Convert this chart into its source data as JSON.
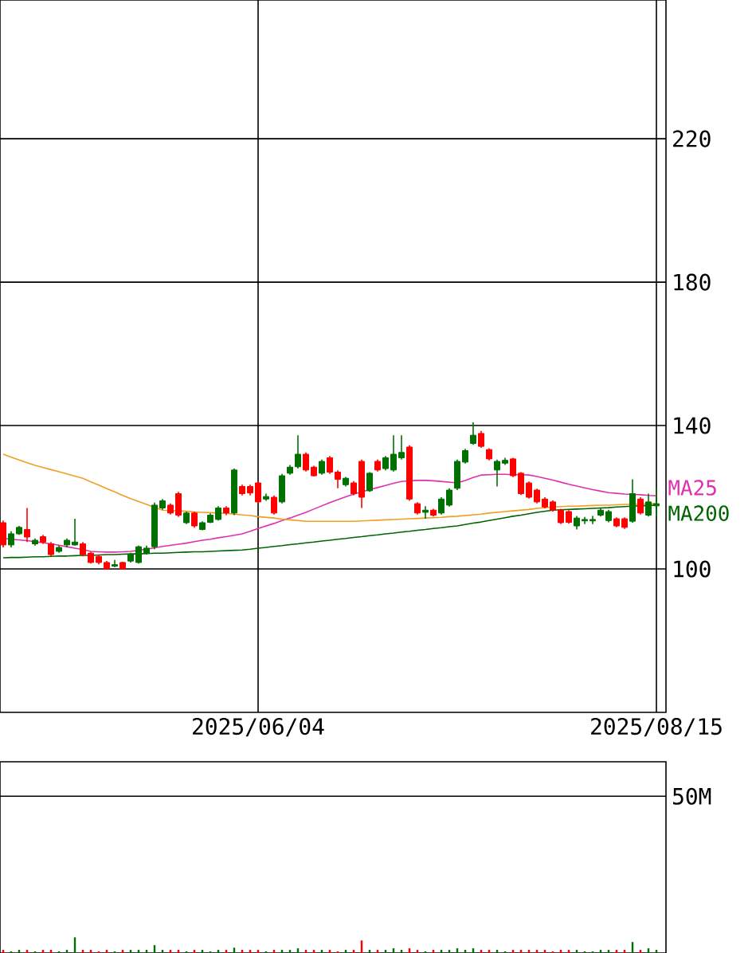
{
  "chart_data": [
    {
      "type": "candlestick",
      "categories": [
        null,
        null,
        null,
        null,
        null,
        null,
        null,
        null,
        null,
        null,
        null,
        null,
        null,
        null,
        null,
        null,
        null,
        null,
        null,
        null,
        null,
        null,
        null,
        null,
        null,
        null,
        null,
        null,
        null,
        null,
        null,
        null,
        "2025/06/04",
        null,
        null,
        null,
        null,
        null,
        null,
        null,
        null,
        null,
        null,
        null,
        null,
        null,
        null,
        null,
        null,
        null,
        null,
        null,
        null,
        null,
        null,
        null,
        null,
        null,
        null,
        null,
        null,
        null,
        null,
        null,
        null,
        null,
        null,
        null,
        null,
        null,
        null,
        null,
        null,
        null,
        null,
        null,
        null,
        null,
        null,
        null,
        null,
        null,
        "2025/08/15"
      ],
      "ohlc": [
        [
          112.9,
          113.5,
          106,
          106.7
        ],
        [
          106.7,
          110.5,
          106,
          109.8
        ],
        [
          109.8,
          112,
          109.5,
          111.6
        ],
        [
          111,
          117,
          107.5,
          108.9
        ],
        [
          107,
          108.5,
          106.5,
          108
        ],
        [
          109,
          109.5,
          107,
          107.5
        ],
        [
          107,
          107.5,
          103.5,
          104
        ],
        [
          104.9,
          106.5,
          104.5,
          106
        ],
        [
          106.7,
          108.5,
          106,
          108
        ],
        [
          106.7,
          114,
          106.5,
          107.5
        ],
        [
          107,
          107.5,
          103.5,
          104
        ],
        [
          104.4,
          104.8,
          101.5,
          101.8
        ],
        [
          103.5,
          104,
          101.3,
          101.8
        ],
        [
          101.8,
          102.2,
          99.8,
          100
        ],
        [
          100.8,
          102.5,
          100.5,
          101.2
        ],
        [
          101.8,
          102,
          99.8,
          100
        ],
        [
          102.2,
          104.5,
          101.8,
          104
        ],
        [
          101.8,
          106.5,
          101.5,
          106.2
        ],
        [
          104.4,
          106.5,
          104,
          105.8
        ],
        [
          106.2,
          118.5,
          105.5,
          117.8
        ],
        [
          117,
          119.5,
          116.5,
          119
        ],
        [
          117.8,
          118.3,
          115.2,
          115.6
        ],
        [
          121,
          121.5,
          114.5,
          115
        ],
        [
          112.9,
          116,
          112.5,
          115.6
        ],
        [
          115.6,
          116,
          111.5,
          112
        ],
        [
          111,
          113.3,
          110.8,
          112.9
        ],
        [
          113,
          115.5,
          112.8,
          115
        ],
        [
          113.8,
          117.5,
          113.5,
          117
        ],
        [
          117,
          117.5,
          115,
          115.6
        ],
        [
          115.6,
          128,
          115,
          127.6
        ],
        [
          123,
          123.5,
          120.5,
          121
        ],
        [
          123,
          123.5,
          120.5,
          121.2
        ],
        [
          124,
          124.5,
          118.3,
          118.7
        ],
        [
          119.5,
          121,
          119,
          120.2
        ],
        [
          120,
          120.5,
          115.2,
          115.6
        ],
        [
          118.7,
          126.5,
          118.3,
          126
        ],
        [
          126.7,
          129,
          126.3,
          128.4
        ],
        [
          128.5,
          137.3,
          128,
          132
        ],
        [
          132,
          132.5,
          127.2,
          127.6
        ],
        [
          128.4,
          128.8,
          125.8,
          126
        ],
        [
          126.7,
          130.5,
          126.3,
          130
        ],
        [
          131,
          131.5,
          126.5,
          127
        ],
        [
          127,
          127.5,
          122.5,
          125
        ],
        [
          123.5,
          125.7,
          123,
          125.3
        ],
        [
          124,
          124.5,
          120.5,
          121
        ],
        [
          130,
          130.5,
          117,
          120
        ],
        [
          121.8,
          127,
          121.5,
          126.7
        ],
        [
          130,
          130.5,
          127.2,
          127.6
        ],
        [
          128,
          131.5,
          127.5,
          131
        ],
        [
          127.6,
          137.3,
          127.2,
          132
        ],
        [
          131,
          137.3,
          130.5,
          132.5
        ],
        [
          134,
          134.5,
          119,
          119.5
        ],
        [
          118.2,
          118.6,
          115.2,
          115.6
        ],
        [
          115.8,
          117.5,
          114,
          116.4
        ],
        [
          116.4,
          116.8,
          114.6,
          115
        ],
        [
          115.6,
          120,
          115.2,
          119.5
        ],
        [
          117.8,
          122.5,
          117.4,
          122
        ],
        [
          122.5,
          130.5,
          122,
          130
        ],
        [
          129.8,
          133.5,
          129.4,
          133
        ],
        [
          135,
          140.9,
          134.6,
          137.3
        ],
        [
          137.8,
          138.5,
          133.8,
          134.2
        ],
        [
          133.3,
          133.7,
          130.3,
          130.7
        ],
        [
          127.6,
          130.5,
          123,
          130
        ],
        [
          129.5,
          131,
          129,
          130.3
        ],
        [
          130.7,
          131,
          125.6,
          126
        ],
        [
          126.7,
          127,
          120.6,
          121
        ],
        [
          124,
          124.4,
          119.6,
          120
        ],
        [
          122,
          122.4,
          118.3,
          118.7
        ],
        [
          119.5,
          120,
          116.9,
          117.3
        ],
        [
          118.7,
          119.1,
          116,
          116.4
        ],
        [
          116.4,
          116.8,
          112.5,
          112.9
        ],
        [
          116,
          116.4,
          112.6,
          113
        ],
        [
          112,
          114.8,
          111,
          114.2
        ],
        [
          113.4,
          114.5,
          112.5,
          113.8
        ],
        [
          113.4,
          114.8,
          112.5,
          113.8
        ],
        [
          115,
          117,
          114.6,
          116.4
        ],
        [
          113.5,
          116.5,
          113,
          116
        ],
        [
          114,
          114.4,
          111.6,
          112
        ],
        [
          114,
          114.4,
          111.2,
          111.6
        ],
        [
          113.3,
          125,
          112.9,
          121
        ],
        [
          119.5,
          120,
          115.2,
          115.6
        ],
        [
          115,
          121,
          114.6,
          118.7
        ],
        [
          117.6,
          122.5,
          114.5,
          118.2
        ]
      ],
      "colors": [
        "#ff0000",
        "#007000",
        "#007000",
        "#ff0000",
        "#007000",
        "#ff0000",
        "#ff0000",
        "#007000",
        "#007000",
        "#007000",
        "#ff0000",
        "#ff0000",
        "#ff0000",
        "#ff0000",
        "#007000",
        "#ff0000",
        "#007000",
        "#007000",
        "#007000",
        "#007000",
        "#007000",
        "#ff0000",
        "#ff0000",
        "#007000",
        "#ff0000",
        "#007000",
        "#007000",
        "#007000",
        "#ff0000",
        "#007000",
        "#ff0000",
        "#ff0000",
        "#ff0000",
        "#007000",
        "#ff0000",
        "#007000",
        "#007000",
        "#007000",
        "#ff0000",
        "#ff0000",
        "#007000",
        "#ff0000",
        "#ff0000",
        "#007000",
        "#ff0000",
        "#ff0000",
        "#007000",
        "#ff0000",
        "#007000",
        "#007000",
        "#007000",
        "#ff0000",
        "#ff0000",
        "#007000",
        "#ff0000",
        "#007000",
        "#007000",
        "#007000",
        "#007000",
        "#007000",
        "#ff0000",
        "#ff0000",
        "#007000",
        "#007000",
        "#ff0000",
        "#ff0000",
        "#ff0000",
        "#ff0000",
        "#ff0000",
        "#ff0000",
        "#ff0000",
        "#ff0000",
        "#007000",
        "#007000",
        "#007000",
        "#007000",
        "#007000",
        "#ff0000",
        "#ff0000",
        "#007000",
        "#ff0000",
        "#007000",
        "#007000"
      ],
      "series": [
        {
          "type": "line",
          "name": "MA25",
          "color": "#e030b0",
          "values": [
            108.5,
            108.3,
            108.1,
            107.9,
            107.6,
            107.3,
            107,
            106.6,
            106.2,
            105.8,
            105.4,
            104.9,
            104.8,
            104.7,
            104.7,
            104.8,
            104.9,
            105.2,
            105.5,
            105.9,
            106.3,
            106.6,
            106.9,
            107.2,
            107.6,
            108,
            108.3,
            108.7,
            109,
            109.4,
            109.8,
            110.5,
            111.3,
            112,
            112.7,
            113.5,
            114.2,
            115,
            115.8,
            116.7,
            117.6,
            118.5,
            119.3,
            120.1,
            120.9,
            121.5,
            122.1,
            122.7,
            123.3,
            123.9,
            124.4,
            124.6,
            124.7,
            124.7,
            124.6,
            124.4,
            124.2,
            124,
            124.7,
            125.5,
            126.2,
            126.3,
            126.4,
            126.4,
            126.3,
            126.3,
            126.2,
            125.8,
            125.3,
            124.8,
            124.2,
            123.6,
            123.1,
            122.6,
            122.1,
            121.7,
            121.3,
            121.1,
            120.9,
            120.8,
            120.7,
            120.5,
            120.4
          ]
        },
        {
          "type": "line",
          "color": "#f0a020",
          "values": [
            132,
            131.2,
            130.4,
            129.6,
            128.9,
            128.3,
            127.7,
            127.1,
            126.5,
            125.9,
            125.3,
            124.3,
            123.4,
            122.4,
            121.5,
            120.5,
            119.6,
            118.8,
            118,
            117.2,
            116.4,
            116.3,
            116.2,
            116.1,
            115.9,
            115.8,
            115.7,
            115.6,
            115.5,
            115.3,
            115.1,
            114.9,
            114.6,
            114.4,
            114.2,
            113.9,
            113.7,
            113.5,
            113.3,
            113.3,
            113.3,
            113.3,
            113.3,
            113.3,
            113.3,
            113.4,
            113.5,
            113.6,
            113.7,
            113.8,
            113.9,
            114,
            114.1,
            114.2,
            114.3,
            114.4,
            114.6,
            114.7,
            114.9,
            115.1,
            115.3,
            115.6,
            115.8,
            116,
            116.2,
            116.4,
            116.6,
            116.9,
            117.1,
            117.3,
            117.4,
            117.5,
            117.5,
            117.6,
            117.7,
            117.8,
            117.8,
            117.9,
            118,
            118,
            118.1,
            118.2,
            118.2
          ]
        },
        {
          "type": "line",
          "name": "MA200",
          "color": "#006400",
          "values": [
            103.1,
            103.2,
            103.2,
            103.3,
            103.4,
            103.4,
            103.5,
            103.6,
            103.6,
            103.7,
            103.8,
            103.8,
            103.9,
            104,
            104,
            104.1,
            104.2,
            104.2,
            104.3,
            104.4,
            104.4,
            104.5,
            104.6,
            104.7,
            104.8,
            104.8,
            104.9,
            105,
            105.1,
            105.2,
            105.3,
            105.5,
            105.8,
            106,
            106.3,
            106.5,
            106.8,
            107,
            107.3,
            107.5,
            107.8,
            108,
            108.3,
            108.5,
            108.8,
            109,
            109.3,
            109.5,
            109.8,
            110,
            110.3,
            110.5,
            110.8,
            111,
            111.3,
            111.5,
            111.8,
            112,
            112.4,
            112.8,
            113.1,
            113.5,
            113.9,
            114.3,
            114.7,
            115,
            115.4,
            115.8,
            116.1,
            116.4,
            116.5,
            116.6,
            116.7,
            116.8,
            116.9,
            117,
            117.1,
            117.3,
            117.4,
            117.5,
            117.6,
            117.7,
            117.8
          ]
        }
      ],
      "ylim": [
        60,
        258.7
      ],
      "yticks": [
        100,
        140,
        180,
        220
      ],
      "grid": true
    },
    {
      "type": "bar",
      "categories": [
        null,
        null,
        null,
        null,
        null,
        null,
        null,
        null,
        null,
        null,
        null,
        null,
        null,
        null,
        null,
        null,
        null,
        null,
        null,
        null,
        null,
        null,
        null,
        null,
        null,
        null,
        null,
        null,
        null,
        null,
        null,
        null,
        null,
        null,
        null,
        null,
        null,
        null,
        null,
        null,
        null,
        null,
        null,
        null,
        null,
        null,
        null,
        null,
        null,
        null,
        null,
        null,
        null,
        null,
        null,
        null,
        null,
        null,
        null,
        null,
        null,
        null,
        null,
        null,
        null,
        null,
        null,
        null,
        null,
        null,
        null,
        null,
        null,
        null,
        null,
        null,
        null,
        null,
        null,
        null,
        null,
        null,
        null
      ],
      "values": [
        1,
        0.5,
        1,
        1,
        0.5,
        1,
        1,
        0.5,
        1,
        5,
        1,
        1,
        0.5,
        1,
        0.5,
        1,
        1,
        1,
        1,
        2.5,
        1,
        1,
        1,
        0.5,
        1,
        1,
        0.5,
        1,
        1,
        1.7,
        1,
        1,
        1,
        0.5,
        1,
        1,
        1,
        1.5,
        1,
        1,
        1,
        1,
        0.5,
        1,
        1,
        4,
        1,
        1,
        1,
        1.5,
        1,
        1.5,
        1,
        0.5,
        1,
        1,
        1,
        1.5,
        1,
        1.5,
        1,
        1,
        1,
        0.5,
        1,
        1,
        1,
        1,
        1,
        0.5,
        1,
        1,
        1,
        0.5,
        0.5,
        1,
        1,
        1,
        1,
        3.5,
        1,
        1.5,
        1
      ],
      "colors": [
        "#ff0000",
        "#007000",
        "#007000",
        "#ff0000",
        "#007000",
        "#ff0000",
        "#ff0000",
        "#007000",
        "#007000",
        "#007000",
        "#ff0000",
        "#ff0000",
        "#ff0000",
        "#ff0000",
        "#007000",
        "#ff0000",
        "#007000",
        "#007000",
        "#007000",
        "#007000",
        "#007000",
        "#ff0000",
        "#ff0000",
        "#007000",
        "#ff0000",
        "#007000",
        "#007000",
        "#007000",
        "#ff0000",
        "#007000",
        "#ff0000",
        "#ff0000",
        "#ff0000",
        "#007000",
        "#ff0000",
        "#007000",
        "#007000",
        "#007000",
        "#ff0000",
        "#ff0000",
        "#007000",
        "#ff0000",
        "#ff0000",
        "#007000",
        "#ff0000",
        "#ff0000",
        "#007000",
        "#ff0000",
        "#007000",
        "#007000",
        "#007000",
        "#ff0000",
        "#ff0000",
        "#007000",
        "#ff0000",
        "#007000",
        "#007000",
        "#007000",
        "#007000",
        "#007000",
        "#ff0000",
        "#ff0000",
        "#007000",
        "#007000",
        "#ff0000",
        "#ff0000",
        "#ff0000",
        "#ff0000",
        "#ff0000",
        "#ff0000",
        "#ff0000",
        "#ff0000",
        "#007000",
        "#007000",
        "#007000",
        "#007000",
        "#007000",
        "#ff0000",
        "#ff0000",
        "#007000",
        "#ff0000",
        "#007000",
        "#007000"
      ],
      "ylim": [
        0,
        61
      ],
      "yticks": [
        {
          "value": 50,
          "label": "50M"
        }
      ],
      "grid": "y",
      "tick_labels": "y"
    }
  ]
}
